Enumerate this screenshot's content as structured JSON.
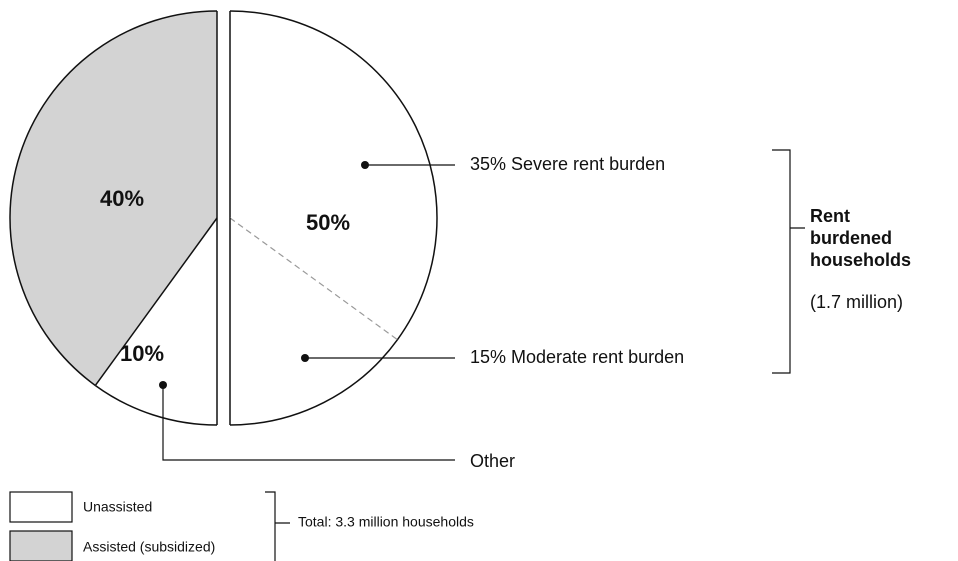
{
  "chart_data": {
    "type": "pie",
    "labels": [
      "35% Severe rent burden",
      "15% Moderate rent burden",
      "Other",
      null
    ],
    "values": [
      35,
      15,
      10,
      40
    ],
    "value_labels": [
      null,
      null,
      "10%",
      "40%"
    ],
    "colors": [
      "#ffffff",
      "#ffffff",
      "#ffffff",
      "#d3d3d3"
    ],
    "exploded": [
      true,
      true,
      false,
      false
    ],
    "exploded_label": "50%",
    "bracket_label": "Rent burdened households",
    "bracket_note": "(1.7 million)",
    "legend": [
      {
        "name": "Unassisted",
        "color": "#ffffff"
      },
      {
        "name": "Assisted (subsidized)",
        "color": "#d3d3d3"
      }
    ],
    "legend_note": "Total: 3.3 million households"
  }
}
